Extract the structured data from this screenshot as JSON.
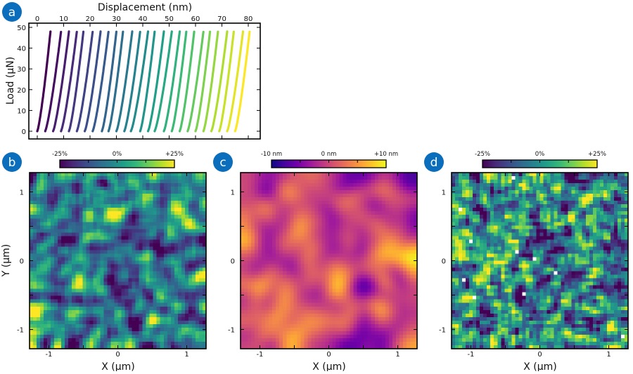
{
  "colors": {
    "panel_badge": "#0a6ebd"
  },
  "chart_data": [
    {
      "panel": "a",
      "type": "scatter",
      "xlabel": "Displacement (nm)",
      "ylabel": "Load (µN)",
      "xlim": [
        -3,
        85
      ],
      "ylim": [
        -3,
        52
      ],
      "xticks": [
        "0",
        "10",
        "20",
        "30",
        "40",
        "50",
        "60",
        "70",
        "80"
      ],
      "yticks": [
        "0",
        "10",
        "20",
        "30",
        "40",
        "50"
      ],
      "colormap": "viridis",
      "load_range": [
        0,
        48
      ],
      "series": [
        {
          "displacement_at_zero_load": 0,
          "displacement_at_max_load": 5
        },
        {
          "displacement_at_zero_load": 3,
          "displacement_at_max_load": 9
        },
        {
          "displacement_at_zero_load": 6,
          "displacement_at_max_load": 12
        },
        {
          "displacement_at_zero_load": 9,
          "displacement_at_max_load": 15
        },
        {
          "displacement_at_zero_load": 12,
          "displacement_at_max_load": 17.5
        },
        {
          "displacement_at_zero_load": 15,
          "displacement_at_max_load": 21
        },
        {
          "displacement_at_zero_load": 18,
          "displacement_at_max_load": 24
        },
        {
          "displacement_at_zero_load": 21,
          "displacement_at_max_load": 27
        },
        {
          "displacement_at_zero_load": 24.5,
          "displacement_at_max_load": 30
        },
        {
          "displacement_at_zero_load": 27,
          "displacement_at_max_load": 32.5
        },
        {
          "displacement_at_zero_load": 30,
          "displacement_at_max_load": 36
        },
        {
          "displacement_at_zero_load": 33,
          "displacement_at_max_load": 39
        },
        {
          "displacement_at_zero_load": 35.5,
          "displacement_at_max_load": 42
        },
        {
          "displacement_at_zero_load": 39,
          "displacement_at_max_load": 44.5
        },
        {
          "displacement_at_zero_load": 42,
          "displacement_at_max_load": 48
        },
        {
          "displacement_at_zero_load": 44.5,
          "displacement_at_max_load": 51
        },
        {
          "displacement_at_zero_load": 48,
          "displacement_at_max_load": 54
        },
        {
          "displacement_at_zero_load": 51,
          "displacement_at_max_load": 56.5
        },
        {
          "displacement_at_zero_load": 54,
          "displacement_at_max_load": 59.5
        },
        {
          "displacement_at_zero_load": 57,
          "displacement_at_max_load": 63
        },
        {
          "displacement_at_zero_load": 60,
          "displacement_at_max_load": 65.5
        },
        {
          "displacement_at_zero_load": 63,
          "displacement_at_max_load": 68.5
        },
        {
          "displacement_at_zero_load": 66,
          "displacement_at_max_load": 72
        },
        {
          "displacement_at_zero_load": 69,
          "displacement_at_max_load": 74.5
        },
        {
          "displacement_at_zero_load": 72,
          "displacement_at_max_load": 78
        },
        {
          "displacement_at_zero_load": 75,
          "displacement_at_max_load": 80.5
        }
      ]
    },
    {
      "panel": "b",
      "type": "heatmap",
      "colormap": "viridis",
      "xlabel": "X (µm)",
      "ylabel": "Y (µm)",
      "xlim": [
        -1.28,
        1.28
      ],
      "ylim": [
        -1.28,
        1.28
      ],
      "xticks": [
        "-1",
        "0",
        "1"
      ],
      "yticks": [
        "1",
        "0",
        "-1"
      ],
      "colorbar": {
        "range": [
          -25,
          25
        ],
        "labels": [
          "-25%",
          "0%",
          "+25%"
        ]
      }
    },
    {
      "panel": "c",
      "type": "heatmap",
      "colormap": "plasma",
      "xlabel": "X (µm)",
      "xlim": [
        -1.28,
        1.28
      ],
      "ylim": [
        -1.28,
        1.28
      ],
      "xticks": [
        "-1",
        "0",
        "1"
      ],
      "yticks": [
        "1",
        "0",
        "-1"
      ],
      "colorbar": {
        "range": [
          -10,
          10
        ],
        "labels": [
          "-10 nm",
          "0 nm",
          "+10 nm"
        ]
      }
    },
    {
      "panel": "d",
      "type": "heatmap",
      "colormap": "viridis",
      "xlabel": "X (µm)",
      "xlim": [
        -1.28,
        1.28
      ],
      "ylim": [
        -1.28,
        1.28
      ],
      "xticks": [
        "-1",
        "0",
        "1"
      ],
      "yticks": [
        "1",
        "0",
        "-1"
      ],
      "colorbar": {
        "range": [
          -25,
          25
        ],
        "labels": [
          "-25%",
          "0%",
          "+25%"
        ]
      },
      "missing_pixels": "white"
    }
  ]
}
